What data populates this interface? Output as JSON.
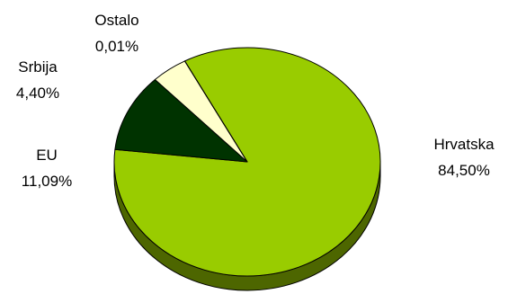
{
  "chart_data": {
    "type": "pie",
    "style": "3d",
    "title": "",
    "legend": "none",
    "slices": [
      {
        "label": "Hrvatska",
        "value": 84.5,
        "value_text": "84,50%",
        "color": "#99CC00",
        "side_color": "#4D6600"
      },
      {
        "label": "EU",
        "value": 11.09,
        "value_text": "11,09%",
        "color": "#003300",
        "side_color": "#001A00"
      },
      {
        "label": "Srbija",
        "value": 4.4,
        "value_text": "4,40%",
        "color": "#FFFFCC",
        "side_color": "#808066"
      },
      {
        "label": "Ostalo",
        "value": 0.01,
        "value_text": "0,01%",
        "color": "#FFCC99",
        "side_color": "#806650"
      }
    ]
  }
}
